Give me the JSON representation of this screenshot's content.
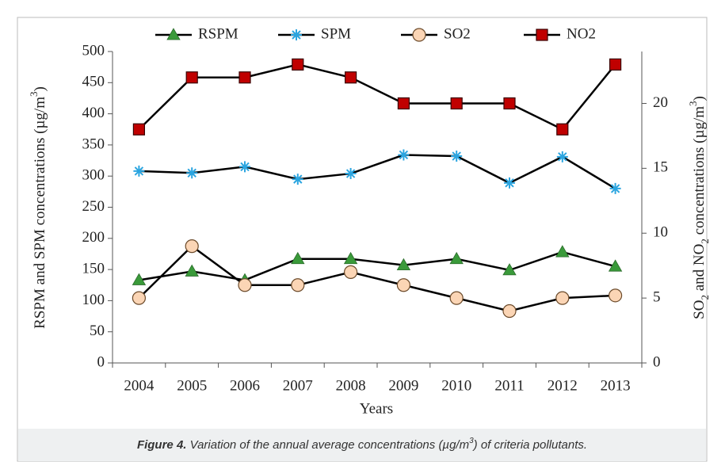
{
  "chart_data": {
    "type": "line",
    "caption": {
      "label": "Figure 4.",
      "parts": [
        {
          "text": " Variation of the annual average concentrations (µg/m"
        },
        {
          "text": "3",
          "shift": "super"
        },
        {
          "text": ") of criteria pollutants."
        }
      ]
    },
    "x_label": "Years",
    "y_label": [
      {
        "text": "RSPM and SPM concentrations  (µg/m"
      },
      {
        "text": "3",
        "shift": "super"
      },
      {
        "text": ")"
      }
    ],
    "y2_label": [
      {
        "text": "SO"
      },
      {
        "text": "2",
        "shift": "sub"
      },
      {
        "text": " and NO"
      },
      {
        "text": "2",
        "shift": "sub"
      },
      {
        "text": "  concentrations  (µg/m"
      },
      {
        "text": "3",
        "shift": "super"
      },
      {
        "text": ")"
      }
    ],
    "categories": [
      "2004",
      "2005",
      "2006",
      "2007",
      "2008",
      "2009",
      "2010",
      "2011",
      "2012",
      "2013"
    ],
    "series": [
      {
        "name": "RSPM",
        "color": "#3a9a3a",
        "marker": "triangle",
        "axis": "y",
        "values": [
          133,
          147,
          133,
          167,
          167,
          157,
          167,
          149,
          178,
          155
        ]
      },
      {
        "name": "SPM",
        "color": "#2ba5e0",
        "marker": "star",
        "axis": "y",
        "values": [
          308,
          305,
          315,
          295,
          304,
          334,
          332,
          289,
          331,
          280
        ]
      },
      {
        "name": "SO2",
        "color": "#fbd5b5",
        "marker": "circle",
        "axis": "y2",
        "values": [
          5,
          9,
          6,
          6,
          7,
          6,
          5,
          4,
          5,
          5.2
        ]
      },
      {
        "name": "NO2",
        "color": "#c00000",
        "marker": "square",
        "axis": "y2",
        "values": [
          18,
          22,
          22,
          23,
          22,
          20,
          20,
          20,
          18,
          23
        ]
      }
    ],
    "ylim": [
      0,
      500
    ],
    "yticks": [
      0,
      50,
      100,
      150,
      200,
      250,
      300,
      350,
      400,
      450,
      500
    ],
    "y2lim": [
      0,
      24
    ],
    "y2ticks": [
      0,
      5,
      10,
      15,
      20
    ],
    "grid": false,
    "legend": "top"
  }
}
